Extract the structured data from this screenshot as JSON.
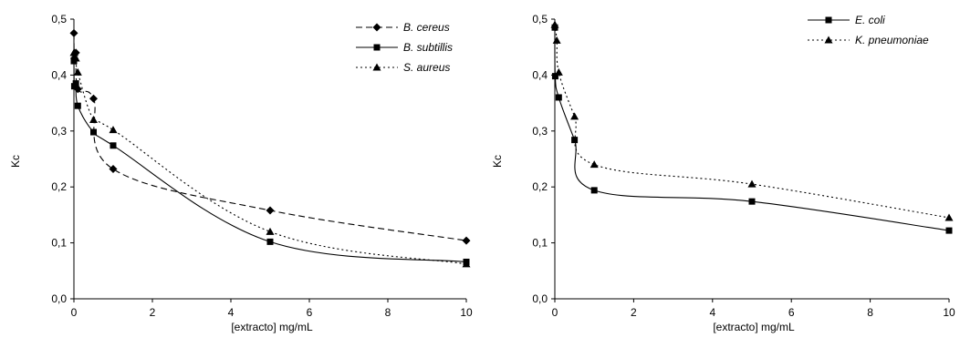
{
  "chart_data": [
    {
      "type": "line",
      "xlabel": "[extracto] mg/mL",
      "ylabel": "Kc",
      "xlim": [
        0,
        10
      ],
      "ylim": [
        0,
        0.5
      ],
      "xticks": [
        "0",
        "2",
        "4",
        "6",
        "8",
        "10"
      ],
      "yticks": [
        "0,0",
        "0,1",
        "0,2",
        "0,3",
        "0,4",
        "0,5"
      ],
      "grid": false,
      "legend_position": "top-right",
      "series": [
        {
          "name": "B. cereus",
          "line_style": "dashed",
          "marker": "diamond",
          "x": [
            0,
            0.01,
            0.05,
            0.1,
            0.5,
            1,
            5,
            10
          ],
          "y": [
            0.475,
            0.43,
            0.44,
            0.375,
            0.358,
            0.232,
            0.158,
            0.104
          ]
        },
        {
          "name": "B. subtillis",
          "line_style": "solid",
          "marker": "square",
          "x": [
            0,
            0.01,
            0.05,
            0.1,
            0.5,
            1,
            5,
            10
          ],
          "y": [
            0.425,
            0.38,
            0.385,
            0.345,
            0.298,
            0.274,
            0.102,
            0.066
          ]
        },
        {
          "name": "S. aureus",
          "line_style": "dotted",
          "marker": "triangle",
          "x": [
            0,
            0.01,
            0.05,
            0.1,
            0.5,
            1,
            5,
            10
          ],
          "y": [
            0.44,
            0.44,
            0.43,
            0.405,
            0.32,
            0.302,
            0.12,
            0.062
          ]
        }
      ]
    },
    {
      "type": "line",
      "xlabel": "[extracto] mg/mL",
      "ylabel": "Kc",
      "xlim": [
        0,
        10
      ],
      "ylim": [
        0,
        0.5
      ],
      "xticks": [
        "0",
        "2",
        "4",
        "6",
        "8",
        "10"
      ],
      "yticks": [
        "0,0",
        "0,1",
        "0,2",
        "0,3",
        "0,4",
        "0,5"
      ],
      "grid": false,
      "legend_position": "top-right",
      "series": [
        {
          "name": "E. coli",
          "line_style": "solid",
          "marker": "square",
          "x": [
            0,
            0.01,
            0.1,
            0.5,
            1,
            5,
            10
          ],
          "y": [
            0.485,
            0.398,
            0.36,
            0.284,
            0.194,
            0.174,
            0.122
          ]
        },
        {
          "name": "K. pneumoniae",
          "line_style": "dotted",
          "marker": "triangle",
          "x": [
            0,
            0.05,
            0.1,
            0.5,
            1,
            5,
            10
          ],
          "y": [
            0.49,
            0.462,
            0.405,
            0.326,
            0.24,
            0.205,
            0.145
          ]
        }
      ]
    }
  ]
}
